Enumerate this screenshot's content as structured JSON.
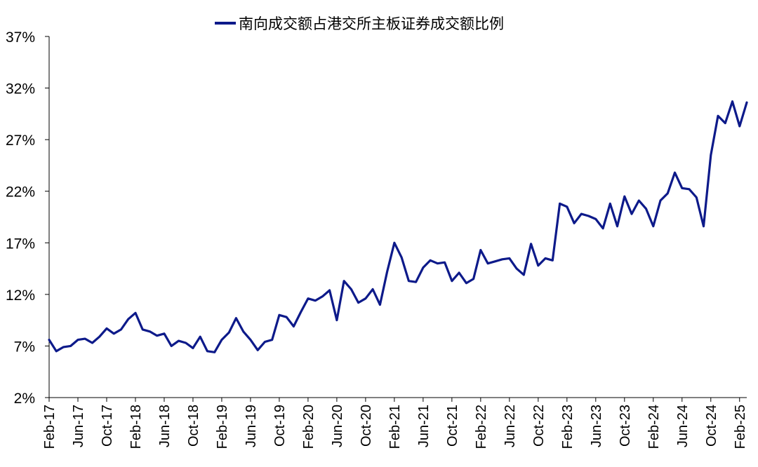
{
  "chart_data": {
    "type": "line",
    "title": "",
    "xlabel": "",
    "ylabel": "",
    "legend": {
      "position": "top-center"
    },
    "grid": false,
    "ylim": [
      2,
      37
    ],
    "y_ticks": [
      "37%",
      "32%",
      "27%",
      "22%",
      "17%",
      "12%",
      "7%",
      "2%"
    ],
    "x_range": [
      "2017-02",
      "2025-03"
    ],
    "x_tick_labels": [
      "Feb-17",
      "Jun-17",
      "Oct-17",
      "Feb-18",
      "Jun-18",
      "Oct-18",
      "Feb-19",
      "Jun-19",
      "Oct-19",
      "Feb-20",
      "Jun-20",
      "Oct-20",
      "Feb-21",
      "Jun-21",
      "Oct-21",
      "Feb-22",
      "Jun-22",
      "Oct-22",
      "Feb-23",
      "Jun-23",
      "Oct-23",
      "Feb-24",
      "Jun-24",
      "Oct-24",
      "Feb-25"
    ],
    "series": [
      {
        "name": "南向成交额占港交所主板证券成交额比例",
        "color": "#0d1a8a",
        "points": [
          [
            "2017-02",
            7.6
          ],
          [
            "2017-03",
            6.5
          ],
          [
            "2017-04",
            6.9
          ],
          [
            "2017-05",
            7.0
          ],
          [
            "2017-06",
            7.6
          ],
          [
            "2017-07",
            7.7
          ],
          [
            "2017-08",
            7.3
          ],
          [
            "2017-09",
            7.9
          ],
          [
            "2017-10",
            8.7
          ],
          [
            "2017-11",
            8.2
          ],
          [
            "2017-12",
            8.6
          ],
          [
            "2018-01",
            9.6
          ],
          [
            "2018-02",
            10.2
          ],
          [
            "2018-03",
            8.6
          ],
          [
            "2018-04",
            8.4
          ],
          [
            "2018-05",
            8.0
          ],
          [
            "2018-06",
            8.2
          ],
          [
            "2018-07",
            7.0
          ],
          [
            "2018-08",
            7.5
          ],
          [
            "2018-09",
            7.3
          ],
          [
            "2018-10",
            6.8
          ],
          [
            "2018-11",
            7.9
          ],
          [
            "2018-12",
            6.5
          ],
          [
            "2019-01",
            6.4
          ],
          [
            "2019-02",
            7.6
          ],
          [
            "2019-03",
            8.3
          ],
          [
            "2019-04",
            9.7
          ],
          [
            "2019-05",
            8.4
          ],
          [
            "2019-06",
            7.6
          ],
          [
            "2019-07",
            6.6
          ],
          [
            "2019-08",
            7.4
          ],
          [
            "2019-09",
            7.6
          ],
          [
            "2019-10",
            10.0
          ],
          [
            "2019-11",
            9.8
          ],
          [
            "2019-12",
            8.9
          ],
          [
            "2020-01",
            10.3
          ],
          [
            "2020-02",
            11.6
          ],
          [
            "2020-03",
            11.4
          ],
          [
            "2020-04",
            11.8
          ],
          [
            "2020-05",
            12.4
          ],
          [
            "2020-06",
            9.5
          ],
          [
            "2020-07",
            13.3
          ],
          [
            "2020-08",
            12.5
          ],
          [
            "2020-09",
            11.2
          ],
          [
            "2020-10",
            11.6
          ],
          [
            "2020-11",
            12.5
          ],
          [
            "2020-12",
            11.0
          ],
          [
            "2021-01",
            14.2
          ],
          [
            "2021-02",
            17.0
          ],
          [
            "2021-03",
            15.6
          ],
          [
            "2021-04",
            13.3
          ],
          [
            "2021-05",
            13.2
          ],
          [
            "2021-06",
            14.6
          ],
          [
            "2021-07",
            15.3
          ],
          [
            "2021-08",
            15.0
          ],
          [
            "2021-09",
            15.1
          ],
          [
            "2021-10",
            13.3
          ],
          [
            "2021-11",
            14.1
          ],
          [
            "2021-12",
            13.1
          ],
          [
            "2022-01",
            13.5
          ],
          [
            "2022-02",
            16.3
          ],
          [
            "2022-03",
            15.0
          ],
          [
            "2022-04",
            15.2
          ],
          [
            "2022-05",
            15.4
          ],
          [
            "2022-06",
            15.5
          ],
          [
            "2022-07",
            14.5
          ],
          [
            "2022-08",
            13.9
          ],
          [
            "2022-09",
            16.9
          ],
          [
            "2022-10",
            14.8
          ],
          [
            "2022-11",
            15.5
          ],
          [
            "2022-12",
            15.3
          ],
          [
            "2023-01",
            20.8
          ],
          [
            "2023-02",
            20.5
          ],
          [
            "2023-03",
            18.9
          ],
          [
            "2023-04",
            19.8
          ],
          [
            "2023-05",
            19.6
          ],
          [
            "2023-06",
            19.3
          ],
          [
            "2023-07",
            18.4
          ],
          [
            "2023-08",
            20.8
          ],
          [
            "2023-09",
            18.6
          ],
          [
            "2023-10",
            21.5
          ],
          [
            "2023-11",
            19.8
          ],
          [
            "2023-12",
            21.1
          ],
          [
            "2024-01",
            20.3
          ],
          [
            "2024-02",
            18.6
          ],
          [
            "2024-03",
            21.1
          ],
          [
            "2024-04",
            21.8
          ],
          [
            "2024-05",
            23.8
          ],
          [
            "2024-06",
            22.3
          ],
          [
            "2024-07",
            22.2
          ],
          [
            "2024-08",
            21.4
          ],
          [
            "2024-09",
            18.6
          ],
          [
            "2024-10",
            25.5
          ],
          [
            "2024-11",
            29.3
          ],
          [
            "2024-12",
            28.6
          ],
          [
            "2025-01",
            30.7
          ],
          [
            "2025-02",
            28.3
          ],
          [
            "2025-03",
            30.6
          ]
        ]
      }
    ]
  }
}
